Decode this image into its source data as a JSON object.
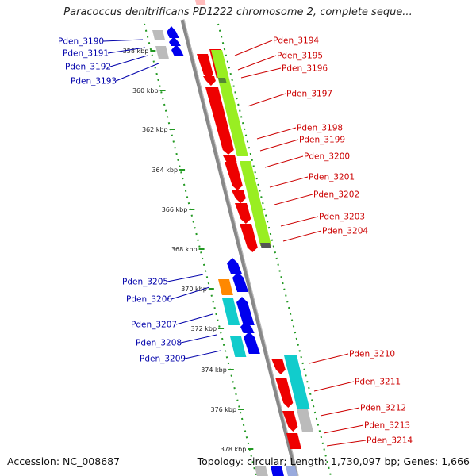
{
  "header": {
    "title": "Paracoccus denitrificans PD1222 chromosome 2, complete seque..."
  },
  "footer": {
    "accession": "Accession: NC_008687",
    "summary": "Topology: circular; Length: 1,730,097 bp; Genes: 1,666"
  },
  "colors": {
    "plus_strand_label": "#cc0000",
    "minus_strand_label": "#0000aa",
    "red_gene": "#ee0000",
    "blue_gene": "#0000ee",
    "green_gene": "#99ee22",
    "cyan_gene": "#11cccc",
    "orange_gene": "#ff8800",
    "gray_gene": "#bbbbbb",
    "dotted_track": "#229922",
    "backbone": "#888888"
  },
  "kbp_ticks": [
    "358 kbp",
    "360 kbp",
    "362 kbp",
    "364 kbp",
    "366 kbp",
    "368 kbp",
    "370 kbp",
    "372 kbp",
    "374 kbp",
    "376 kbp",
    "378 kbp"
  ],
  "genes_left": [
    "Pden_3190",
    "Pden_3191",
    "Pden_3192",
    "Pden_3193",
    "Pden_3205",
    "Pden_3206",
    "Pden_3207",
    "Pden_3208",
    "Pden_3209"
  ],
  "genes_right": [
    "Pden_3194",
    "Pden_3195",
    "Pden_3196",
    "Pden_3197",
    "Pden_3198",
    "Pden_3199",
    "Pden_3200",
    "Pden_3201",
    "Pden_3202",
    "Pden_3203",
    "Pden_3204",
    "Pden_3210",
    "Pden_3211",
    "Pden_3212",
    "Pden_3213",
    "Pden_3214"
  ]
}
